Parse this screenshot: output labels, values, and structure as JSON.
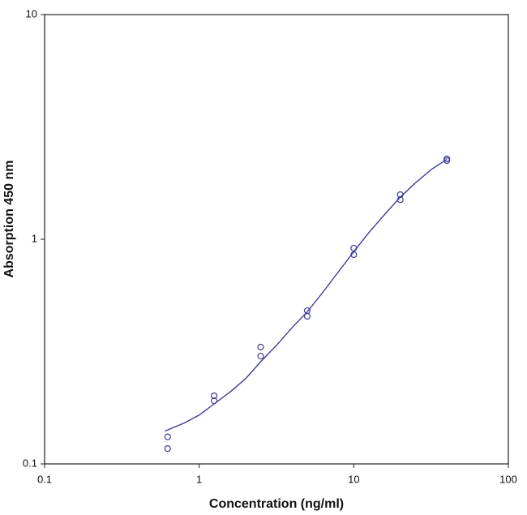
{
  "chart_data": {
    "type": "scatter",
    "xlabel": "Concentration (ng/ml)",
    "ylabel": "Absorption 450 nm",
    "xlim": [
      0.1,
      100
    ],
    "ylim": [
      0.1,
      10
    ],
    "xticks": [
      0.1,
      1,
      10,
      100
    ],
    "yticks": [
      0.1,
      1,
      10
    ],
    "xscale": "log",
    "yscale": "log",
    "series": [
      {
        "color": "#3b3b9b",
        "marker": "circle",
        "x": [
          0.625,
          0.625,
          1.25,
          1.25,
          2.5,
          2.5,
          5,
          5,
          10,
          10,
          20,
          20,
          40,
          40
        ],
        "values": [
          0.132,
          0.117,
          0.201,
          0.191,
          0.331,
          0.302,
          0.481,
          0.454,
          0.913,
          0.854,
          1.58,
          1.5,
          2.28,
          2.24
        ]
      },
      {
        "color": "#3b3b9b",
        "marker": "line",
        "x": [
          0.6,
          0.8,
          1,
          1.25,
          1.6,
          2,
          2.5,
          3.2,
          4,
          5,
          6.3,
          8,
          10,
          12.5,
          16,
          20,
          25,
          32,
          40
        ],
        "values": [
          0.14,
          0.152,
          0.165,
          0.185,
          0.21,
          0.24,
          0.285,
          0.34,
          0.405,
          0.475,
          0.58,
          0.72,
          0.88,
          1.07,
          1.3,
          1.54,
          1.78,
          2.05,
          2.27
        ]
      }
    ]
  }
}
